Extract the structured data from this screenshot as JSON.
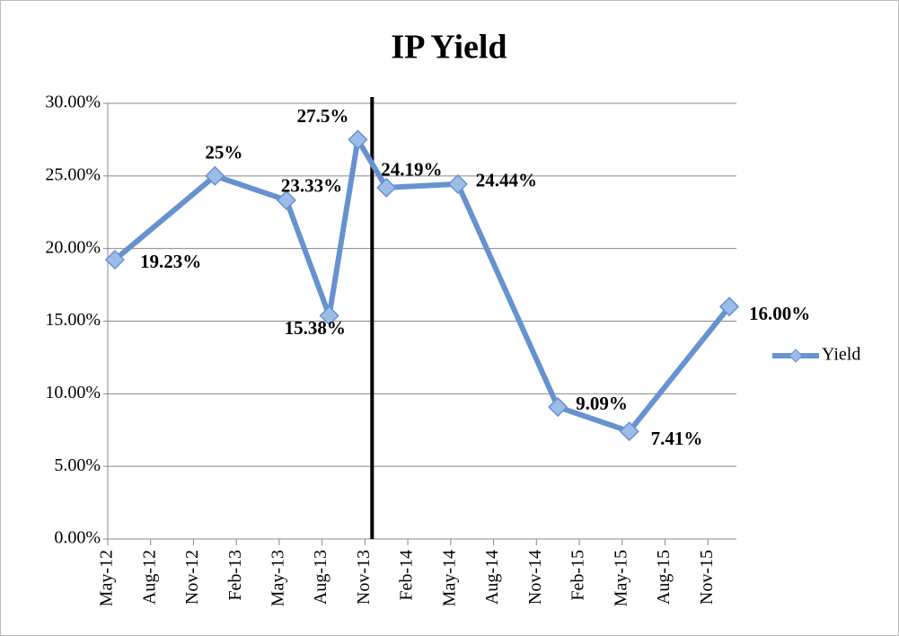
{
  "chart_data": {
    "type": "line",
    "title": "IP Yield",
    "x": [
      "2012-05",
      "2012-12",
      "2013-05",
      "2013-08",
      "2013-10",
      "2013-12",
      "2014-05",
      "2014-12",
      "2015-05",
      "2015-12"
    ],
    "series": [
      {
        "name": "Yield",
        "color": "#6692cf",
        "values": [
          19.23,
          25,
          23.33,
          15.38,
          27.5,
          24.19,
          24.44,
          9.09,
          7.41,
          16.0
        ],
        "value_labels": [
          "19.23%",
          "25%",
          "23.33%",
          "15.38%",
          "27.5%",
          "24.19%",
          "24.44%",
          "9.09%",
          "7.41%",
          "16.00%"
        ]
      }
    ],
    "xlim": [
      "2012-05",
      "2016-01"
    ],
    "xticks": [
      {
        "value": "2012-05",
        "label": "May-12"
      },
      {
        "value": "2012-08",
        "label": "Aug-12"
      },
      {
        "value": "2012-11",
        "label": "Nov-12"
      },
      {
        "value": "2013-02",
        "label": "Feb-13"
      },
      {
        "value": "2013-05",
        "label": "May-13"
      },
      {
        "value": "2013-08",
        "label": "Aug-13"
      },
      {
        "value": "2013-11",
        "label": "Nov-13"
      },
      {
        "value": "2014-02",
        "label": "Feb-14"
      },
      {
        "value": "2014-05",
        "label": "May-14"
      },
      {
        "value": "2014-08",
        "label": "Aug-14"
      },
      {
        "value": "2014-11",
        "label": "Nov-14"
      },
      {
        "value": "2015-02",
        "label": "Feb-15"
      },
      {
        "value": "2015-05",
        "label": "May-15"
      },
      {
        "value": "2015-08",
        "label": "Aug-15"
      },
      {
        "value": "2015-11",
        "label": "Nov-15"
      }
    ],
    "ylim": [
      0,
      30
    ],
    "yticks": [
      {
        "value": 0,
        "label": "0.00%"
      },
      {
        "value": 5,
        "label": "5.00%"
      },
      {
        "value": 10,
        "label": "10.00%"
      },
      {
        "value": 15,
        "label": "15.00%"
      },
      {
        "value": 20,
        "label": "20.00%"
      },
      {
        "value": 25,
        "label": "25.00%"
      },
      {
        "value": 30,
        "label": "30.00%"
      }
    ],
    "vline": "2013-11",
    "grid": true,
    "legend": "right"
  }
}
